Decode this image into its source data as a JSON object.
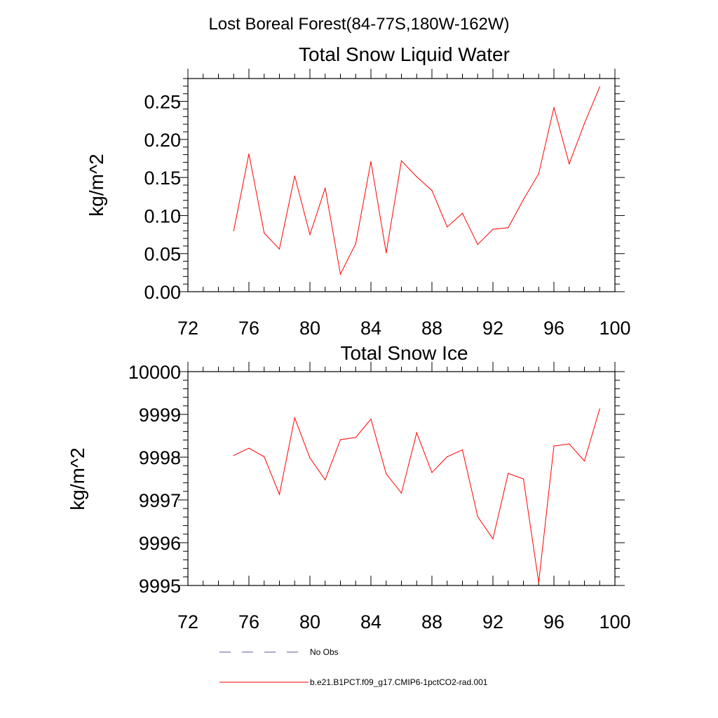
{
  "figure": {
    "title": "Lost Boreal Forest(84-77S,180W-162W)"
  },
  "legend": {
    "entries": [
      {
        "label": "No Obs",
        "color": "#5a5a8c",
        "dashed": true
      },
      {
        "label": "b.e21.B1PCT.f09_g17.CMIP6-1pctCO2-rad.001",
        "color": "#ff0000",
        "dashed": false
      }
    ]
  },
  "chart_data": [
    {
      "type": "line",
      "title": "Total Snow Liquid Water",
      "xlabel": "",
      "ylabel": "kg/m^2",
      "xlim": [
        72,
        100
      ],
      "ylim": [
        0,
        0.28
      ],
      "xticks": [
        72,
        76,
        80,
        84,
        88,
        92,
        96,
        100
      ],
      "xtick_labels": [
        "72",
        "76",
        "80",
        "84",
        "88",
        "92",
        "96",
        "100"
      ],
      "yticks": [
        0,
        0.05,
        0.1,
        0.15,
        0.2,
        0.25
      ],
      "ytick_labels": [
        "0.00",
        "0.05",
        "0.10",
        "0.15",
        "0.20",
        "0.25"
      ],
      "grid": false,
      "series": [
        {
          "name": "b.e21.B1PCT.f09_g17.CMIP6-1pctCO2-rad.001",
          "color": "#ff0000",
          "x": [
            75,
            76,
            77,
            78,
            79,
            80,
            81,
            82,
            83,
            84,
            85,
            86,
            87,
            88,
            89,
            90,
            91,
            92,
            93,
            94,
            95,
            96,
            97,
            98,
            99
          ],
          "y": [
            0.08,
            0.181,
            0.077,
            0.056,
            0.152,
            0.075,
            0.136,
            0.023,
            0.063,
            0.171,
            0.051,
            0.172,
            0.151,
            0.133,
            0.085,
            0.103,
            0.062,
            0.082,
            0.084,
            0.121,
            0.155,
            0.242,
            0.168,
            0.221,
            0.269
          ]
        }
      ]
    },
    {
      "type": "line",
      "title": "Total Snow Ice",
      "xlabel": "",
      "ylabel": "kg/m^2",
      "xlim": [
        72,
        100
      ],
      "ylim": [
        9995,
        10000
      ],
      "xticks": [
        72,
        76,
        80,
        84,
        88,
        92,
        96,
        100
      ],
      "xtick_labels": [
        "72",
        "76",
        "80",
        "84",
        "88",
        "92",
        "96",
        "100"
      ],
      "yticks": [
        9995,
        9996,
        9997,
        9998,
        9999,
        10000
      ],
      "ytick_labels": [
        "9995",
        "9996",
        "9997",
        "9998",
        "9999",
        "10000"
      ],
      "grid": false,
      "series": [
        {
          "name": "b.e21.B1PCT.f09_g17.CMIP6-1pctCO2-rad.001",
          "color": "#ff0000",
          "x": [
            75,
            76,
            77,
            78,
            79,
            80,
            81,
            82,
            83,
            84,
            85,
            86,
            87,
            88,
            89,
            90,
            91,
            92,
            93,
            94,
            95,
            96,
            97,
            98,
            99
          ],
          "y": [
            9998.04,
            9998.21,
            9998.01,
            9997.13,
            9998.92,
            9997.98,
            9997.47,
            9998.41,
            9998.46,
            9998.89,
            9997.61,
            9997.16,
            9998.57,
            9997.64,
            9998.01,
            9998.17,
            9996.61,
            9996.09,
            9997.62,
            9997.49,
            9995.07,
            9998.26,
            9998.31,
            9997.91,
            9999.13
          ]
        }
      ]
    }
  ]
}
